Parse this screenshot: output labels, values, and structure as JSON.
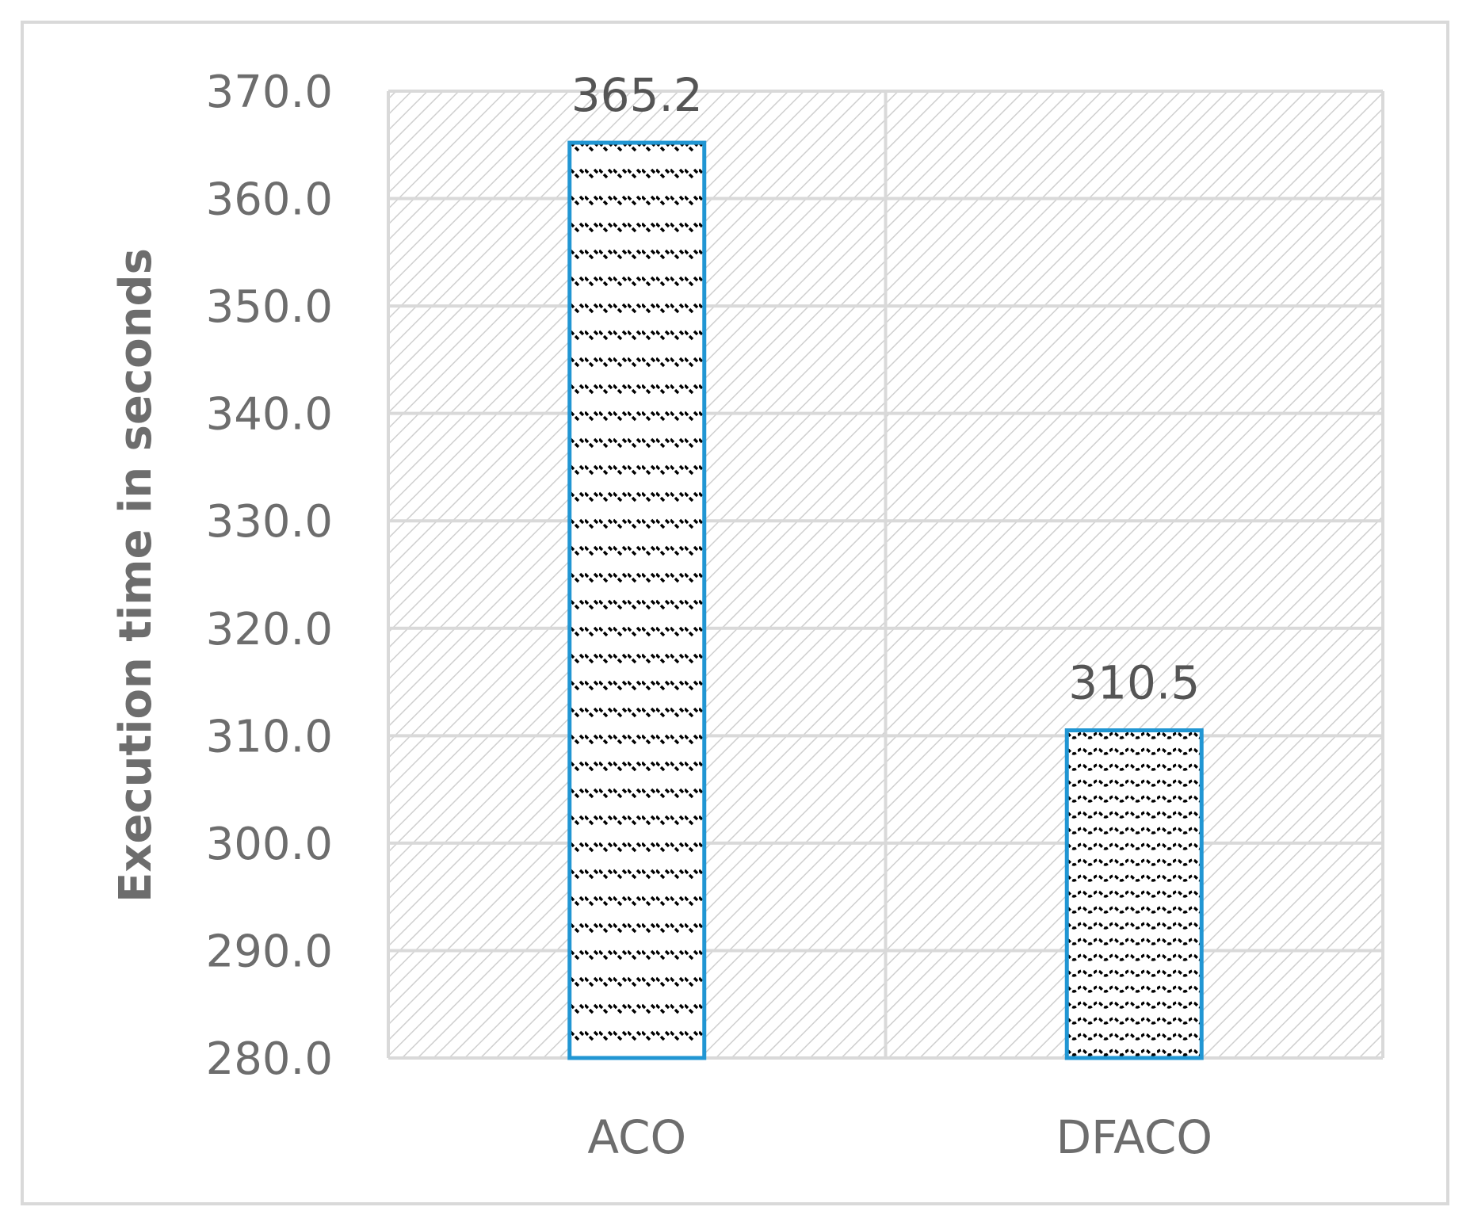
{
  "chart_data": {
    "type": "bar",
    "title": "",
    "xlabel": "",
    "ylabel": "Execution time in seconds",
    "categories": [
      "ACO",
      "DFACO"
    ],
    "values": [
      365.2,
      310.5
    ],
    "data_labels": [
      "365.2",
      "310.5"
    ],
    "ylim": [
      280,
      370
    ],
    "yticks": [
      280,
      290,
      300,
      310,
      320,
      330,
      340,
      350,
      360,
      370
    ],
    "ytick_labels": [
      "280.0",
      "290.0",
      "300.0",
      "310.0",
      "320.0",
      "330.0",
      "340.0",
      "350.0",
      "360.0",
      "370.0"
    ],
    "grid": true,
    "legend": "none",
    "colors": {
      "bar_border": "#2196d3",
      "grid": "#d9d9d9",
      "plot_hatch": "#cfcfcf",
      "text": "#6d6d6d"
    }
  }
}
